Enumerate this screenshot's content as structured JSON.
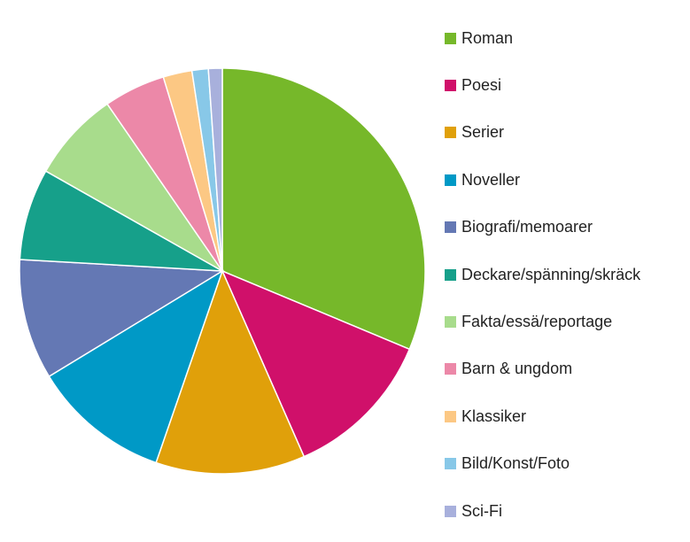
{
  "chart_data": {
    "type": "pie",
    "title": "",
    "legend_position": "right",
    "start_angle": "top, clockwise",
    "categories": [
      "Roman",
      "Poesi",
      "Serier",
      "Noveller",
      "Biografi/memoarer",
      "Deckare/spänning/skräck",
      "Fakta/essä/reportage",
      "Barn & ungdom",
      "Klassiker",
      "Bild/Konst/Foto",
      "Sci-Fi"
    ],
    "values": [
      31.3,
      12.1,
      11.9,
      11.0,
      9.6,
      7.3,
      7.2,
      4.9,
      2.3,
      1.3,
      1.1
    ],
    "colors": [
      "#76b82a",
      "#d0106a",
      "#e0a00a",
      "#0099c6",
      "#6478b4",
      "#16a08a",
      "#a8dc8c",
      "#ec88a8",
      "#fcc884",
      "#88c8e8",
      "#a8b0dc"
    ]
  }
}
